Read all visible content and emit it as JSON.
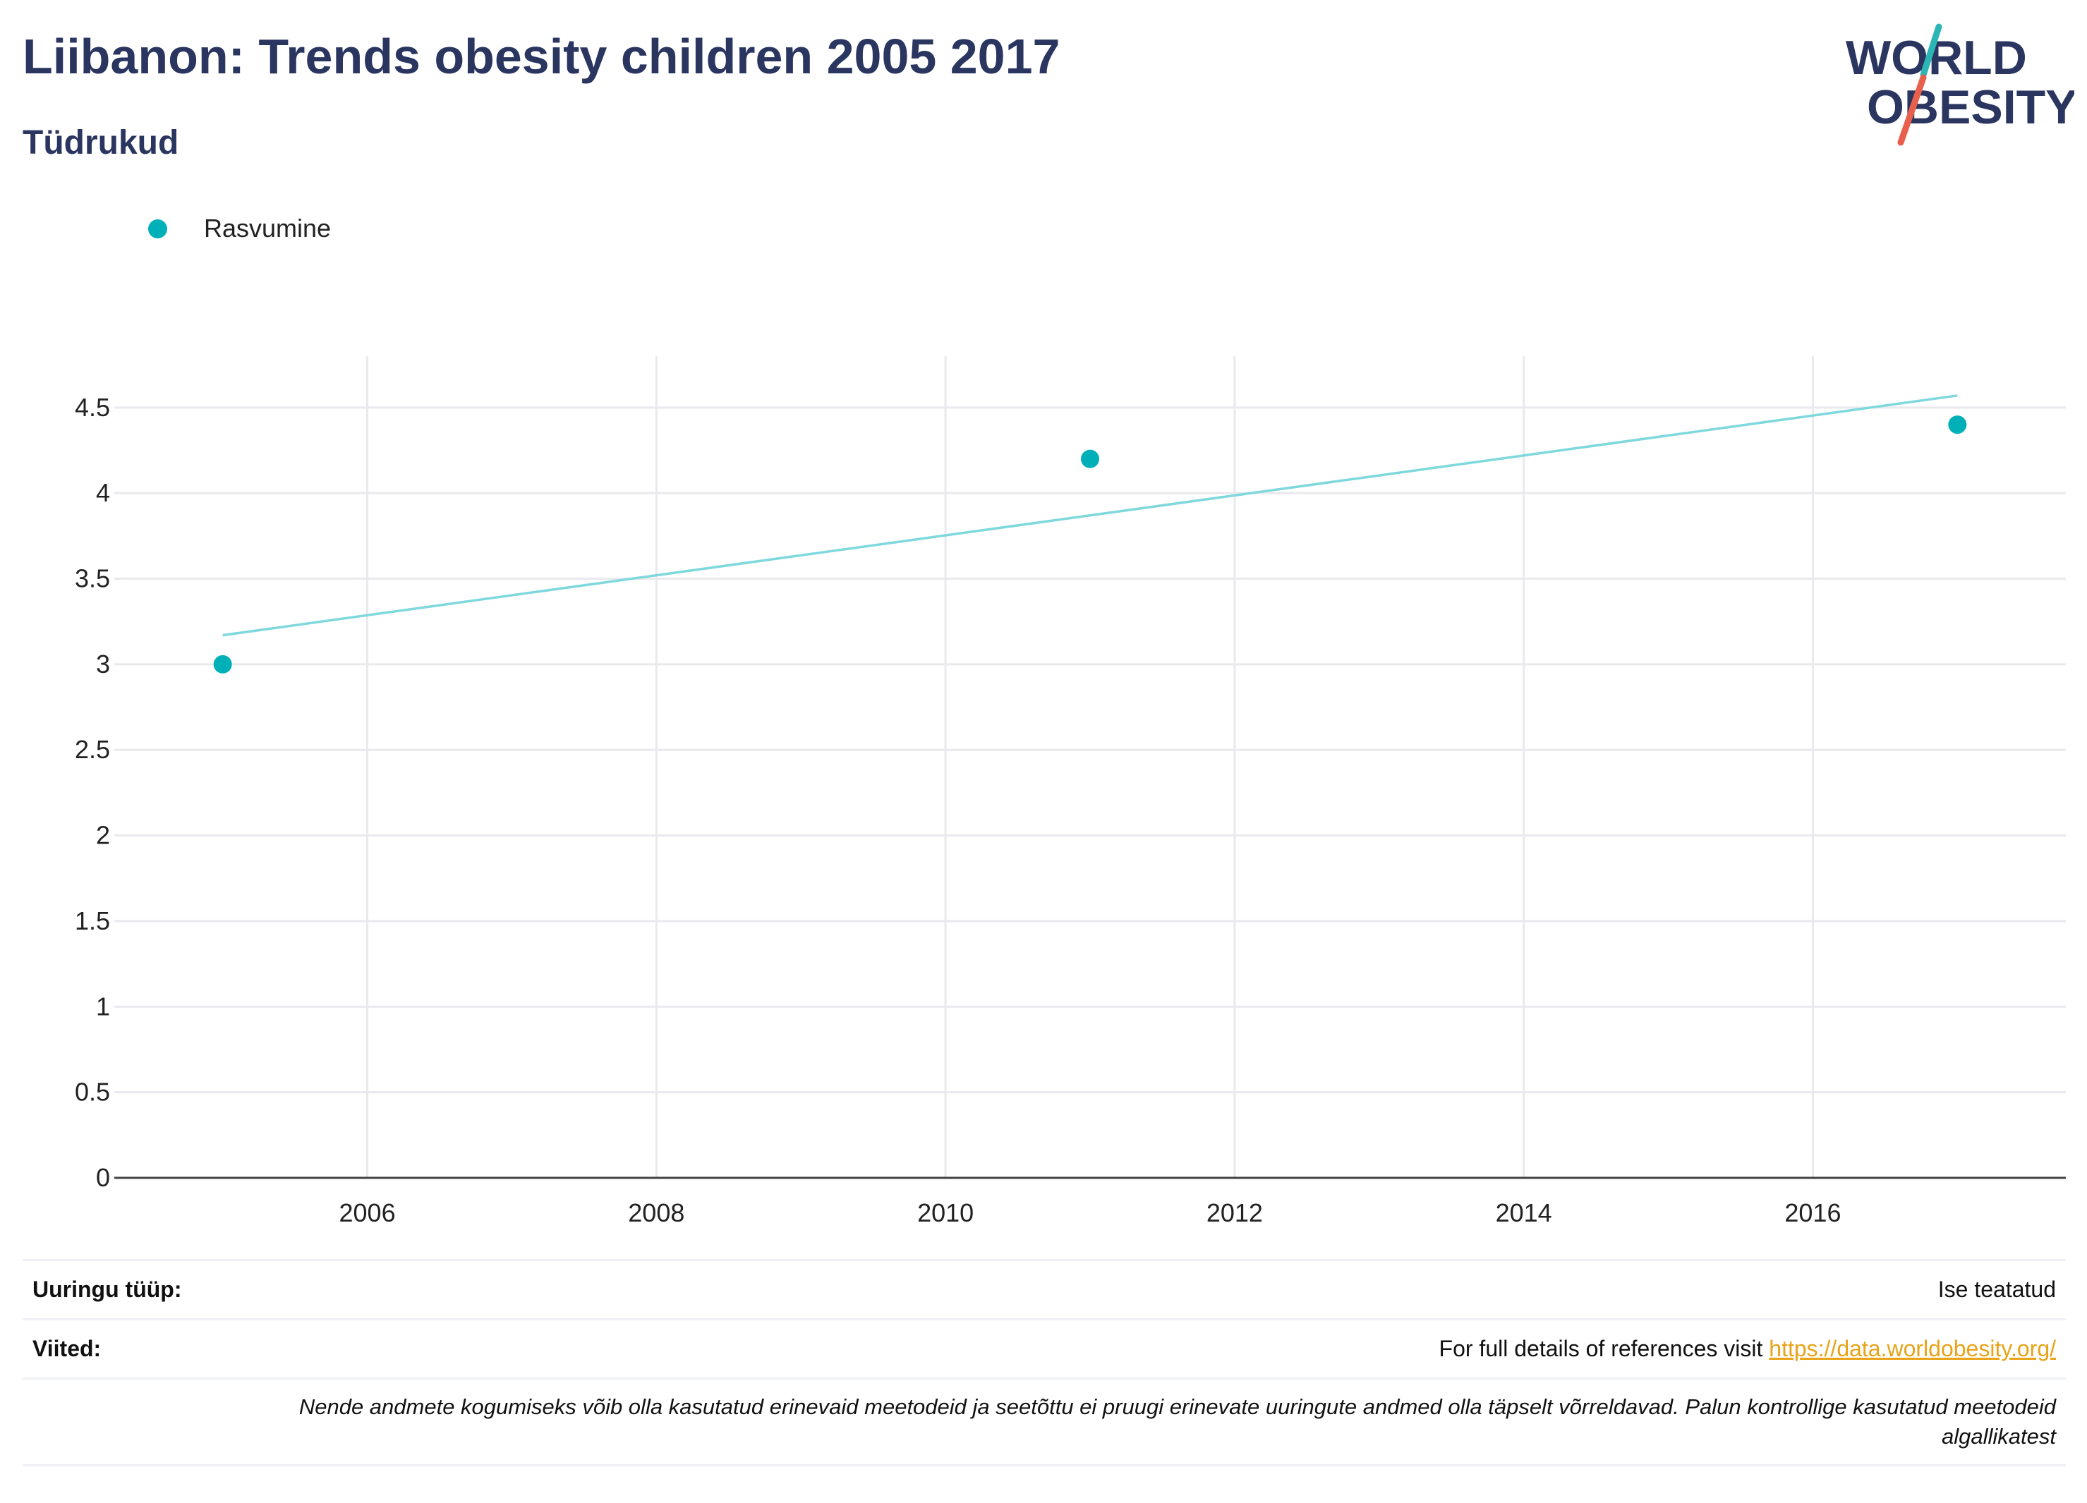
{
  "header": {
    "title": "Liibanon: Trends obesity children 2005 2017",
    "subtitle": "Tüdrukud"
  },
  "logo": {
    "line1": "WORLD",
    "line2": "OBESITY",
    "colors": {
      "text": "#2a3560",
      "slash_top": "#2cb5b5",
      "slash_bottom": "#e8604c"
    }
  },
  "legend": {
    "label": "Rasvumine",
    "color": "#00b0b9"
  },
  "chart_data": {
    "type": "scatter",
    "series": [
      {
        "name": "Rasvumine",
        "color": "#00b0b9",
        "x": [
          2005,
          2011,
          2017
        ],
        "y": [
          3.0,
          4.2,
          4.4
        ]
      }
    ],
    "trendline": {
      "color": "#7ed8dc",
      "x": [
        2005,
        2017
      ],
      "y": [
        3.17,
        4.57
      ]
    },
    "xlim": [
      2004.25,
      2017.75
    ],
    "ylim": [
      0,
      4.8
    ],
    "x_ticks": [
      "2006",
      "2008",
      "2010",
      "2012",
      "2014",
      "2016"
    ],
    "y_ticks": [
      "0",
      "0.5",
      "1",
      "1.5",
      "2",
      "2.5",
      "3",
      "3.5",
      "4",
      "4.5"
    ],
    "grid": true,
    "legend_position": "top-left"
  },
  "info": {
    "survey_type_label": "Uuringu tüüp:",
    "survey_type_value": "Ise teatatud",
    "references_label": "Viited:",
    "references_text": "For full details of references visit ",
    "references_link": "https://data.worldobesity.org/",
    "note_line1": "Nende andmete kogumiseks võib olla kasutatud erinevaid meetodeid ja seetõttu ei pruugi erinevate uuringute andmed olla täpselt võrreldavad. Palun kontrollige kasutatud meetodeid",
    "note_line2": "algallikatest"
  }
}
